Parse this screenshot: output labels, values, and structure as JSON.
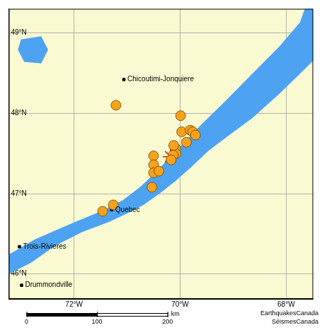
{
  "chart_data": {
    "type": "map",
    "xlim": [
      -73.23,
      -67.49
    ],
    "ylim": [
      45.69,
      49.3
    ],
    "xticks": [
      {
        "value": -72,
        "label": "72°W"
      },
      {
        "value": -70,
        "label": "70°W"
      },
      {
        "value": -68,
        "label": "68°W"
      }
    ],
    "yticks": [
      {
        "value": 46,
        "label": "46°N"
      },
      {
        "value": 47,
        "label": "47°N"
      },
      {
        "value": 48,
        "label": "48°N"
      },
      {
        "value": 49,
        "label": "49°N"
      }
    ],
    "grid": true,
    "series": [
      {
        "type": "area",
        "color": "#4da3f2",
        "polygons": [
          [
            [
              -73.26,
              46.23
            ],
            [
              -72.74,
              46.43
            ],
            [
              -71.97,
              46.65
            ],
            [
              -71.46,
              46.79
            ],
            [
              -71.08,
              46.92
            ],
            [
              -70.76,
              47.08
            ],
            [
              -70.5,
              47.24
            ],
            [
              -70.24,
              47.42
            ],
            [
              -69.95,
              47.62
            ],
            [
              -69.6,
              47.86
            ],
            [
              -69.15,
              48.15
            ],
            [
              -68.64,
              48.49
            ],
            [
              -68.13,
              48.83
            ],
            [
              -67.74,
              49.13
            ],
            [
              -67.62,
              49.35
            ],
            [
              -67.3,
              49.4
            ],
            [
              -67.3,
              48.7
            ],
            [
              -67.42,
              48.7
            ],
            [
              -67.74,
              48.49
            ],
            [
              -68.13,
              48.24
            ],
            [
              -68.64,
              47.94
            ],
            [
              -69.15,
              47.69
            ],
            [
              -69.47,
              47.53
            ],
            [
              -69.79,
              47.33
            ],
            [
              -70.08,
              47.16
            ],
            [
              -70.37,
              47.01
            ],
            [
              -70.69,
              46.86
            ],
            [
              -71.01,
              46.75
            ],
            [
              -71.33,
              46.65
            ],
            [
              -71.85,
              46.52
            ],
            [
              -72.36,
              46.35
            ],
            [
              -72.81,
              46.14
            ],
            [
              -73.26,
              45.99
            ]
          ],
          [
            [
              -73.0,
              48.92
            ],
            [
              -72.62,
              48.96
            ],
            [
              -72.49,
              48.79
            ],
            [
              -72.62,
              48.62
            ],
            [
              -72.94,
              48.64
            ],
            [
              -73.06,
              48.79
            ]
          ]
        ]
      },
      {
        "type": "scatter",
        "marker": "circle",
        "color": "#f7a21b",
        "x": [
          -71.21,
          -69.99,
          -69.97,
          -69.81,
          -69.76,
          -69.71,
          -69.88,
          -70.08,
          -70.08,
          -70.12,
          -70.13,
          -70.17,
          -70.5,
          -70.5,
          -70.5,
          -70.4,
          -70.53,
          -71.26,
          -71.46
        ],
        "values": [
          48.1,
          47.97,
          47.77,
          47.79,
          47.77,
          47.73,
          47.64,
          47.56,
          47.5,
          47.6,
          47.48,
          47.42,
          47.47,
          47.36,
          47.26,
          47.28,
          47.08,
          46.86,
          46.78
        ]
      },
      {
        "type": "scatter",
        "marker": "star",
        "color": "#ff0000",
        "x": [
          -70.18
        ],
        "values": [
          47.46
        ]
      },
      {
        "type": "scatter",
        "marker": "square",
        "color": "#000000",
        "x": [
          -71.06,
          -71.29,
          -73.03,
          -72.99
        ],
        "values": [
          48.42,
          46.8,
          46.34,
          45.86
        ],
        "labels": [
          "Chicoutimi-Jonquiere",
          "Quebec",
          "Trois-Rivieres",
          "Drummondville"
        ]
      }
    ],
    "scale_bar": {
      "ticks": [
        0,
        100,
        200
      ],
      "label": "km"
    },
    "annotations": [
      "EarthquakesCanada",
      "SéismesCanada"
    ]
  }
}
